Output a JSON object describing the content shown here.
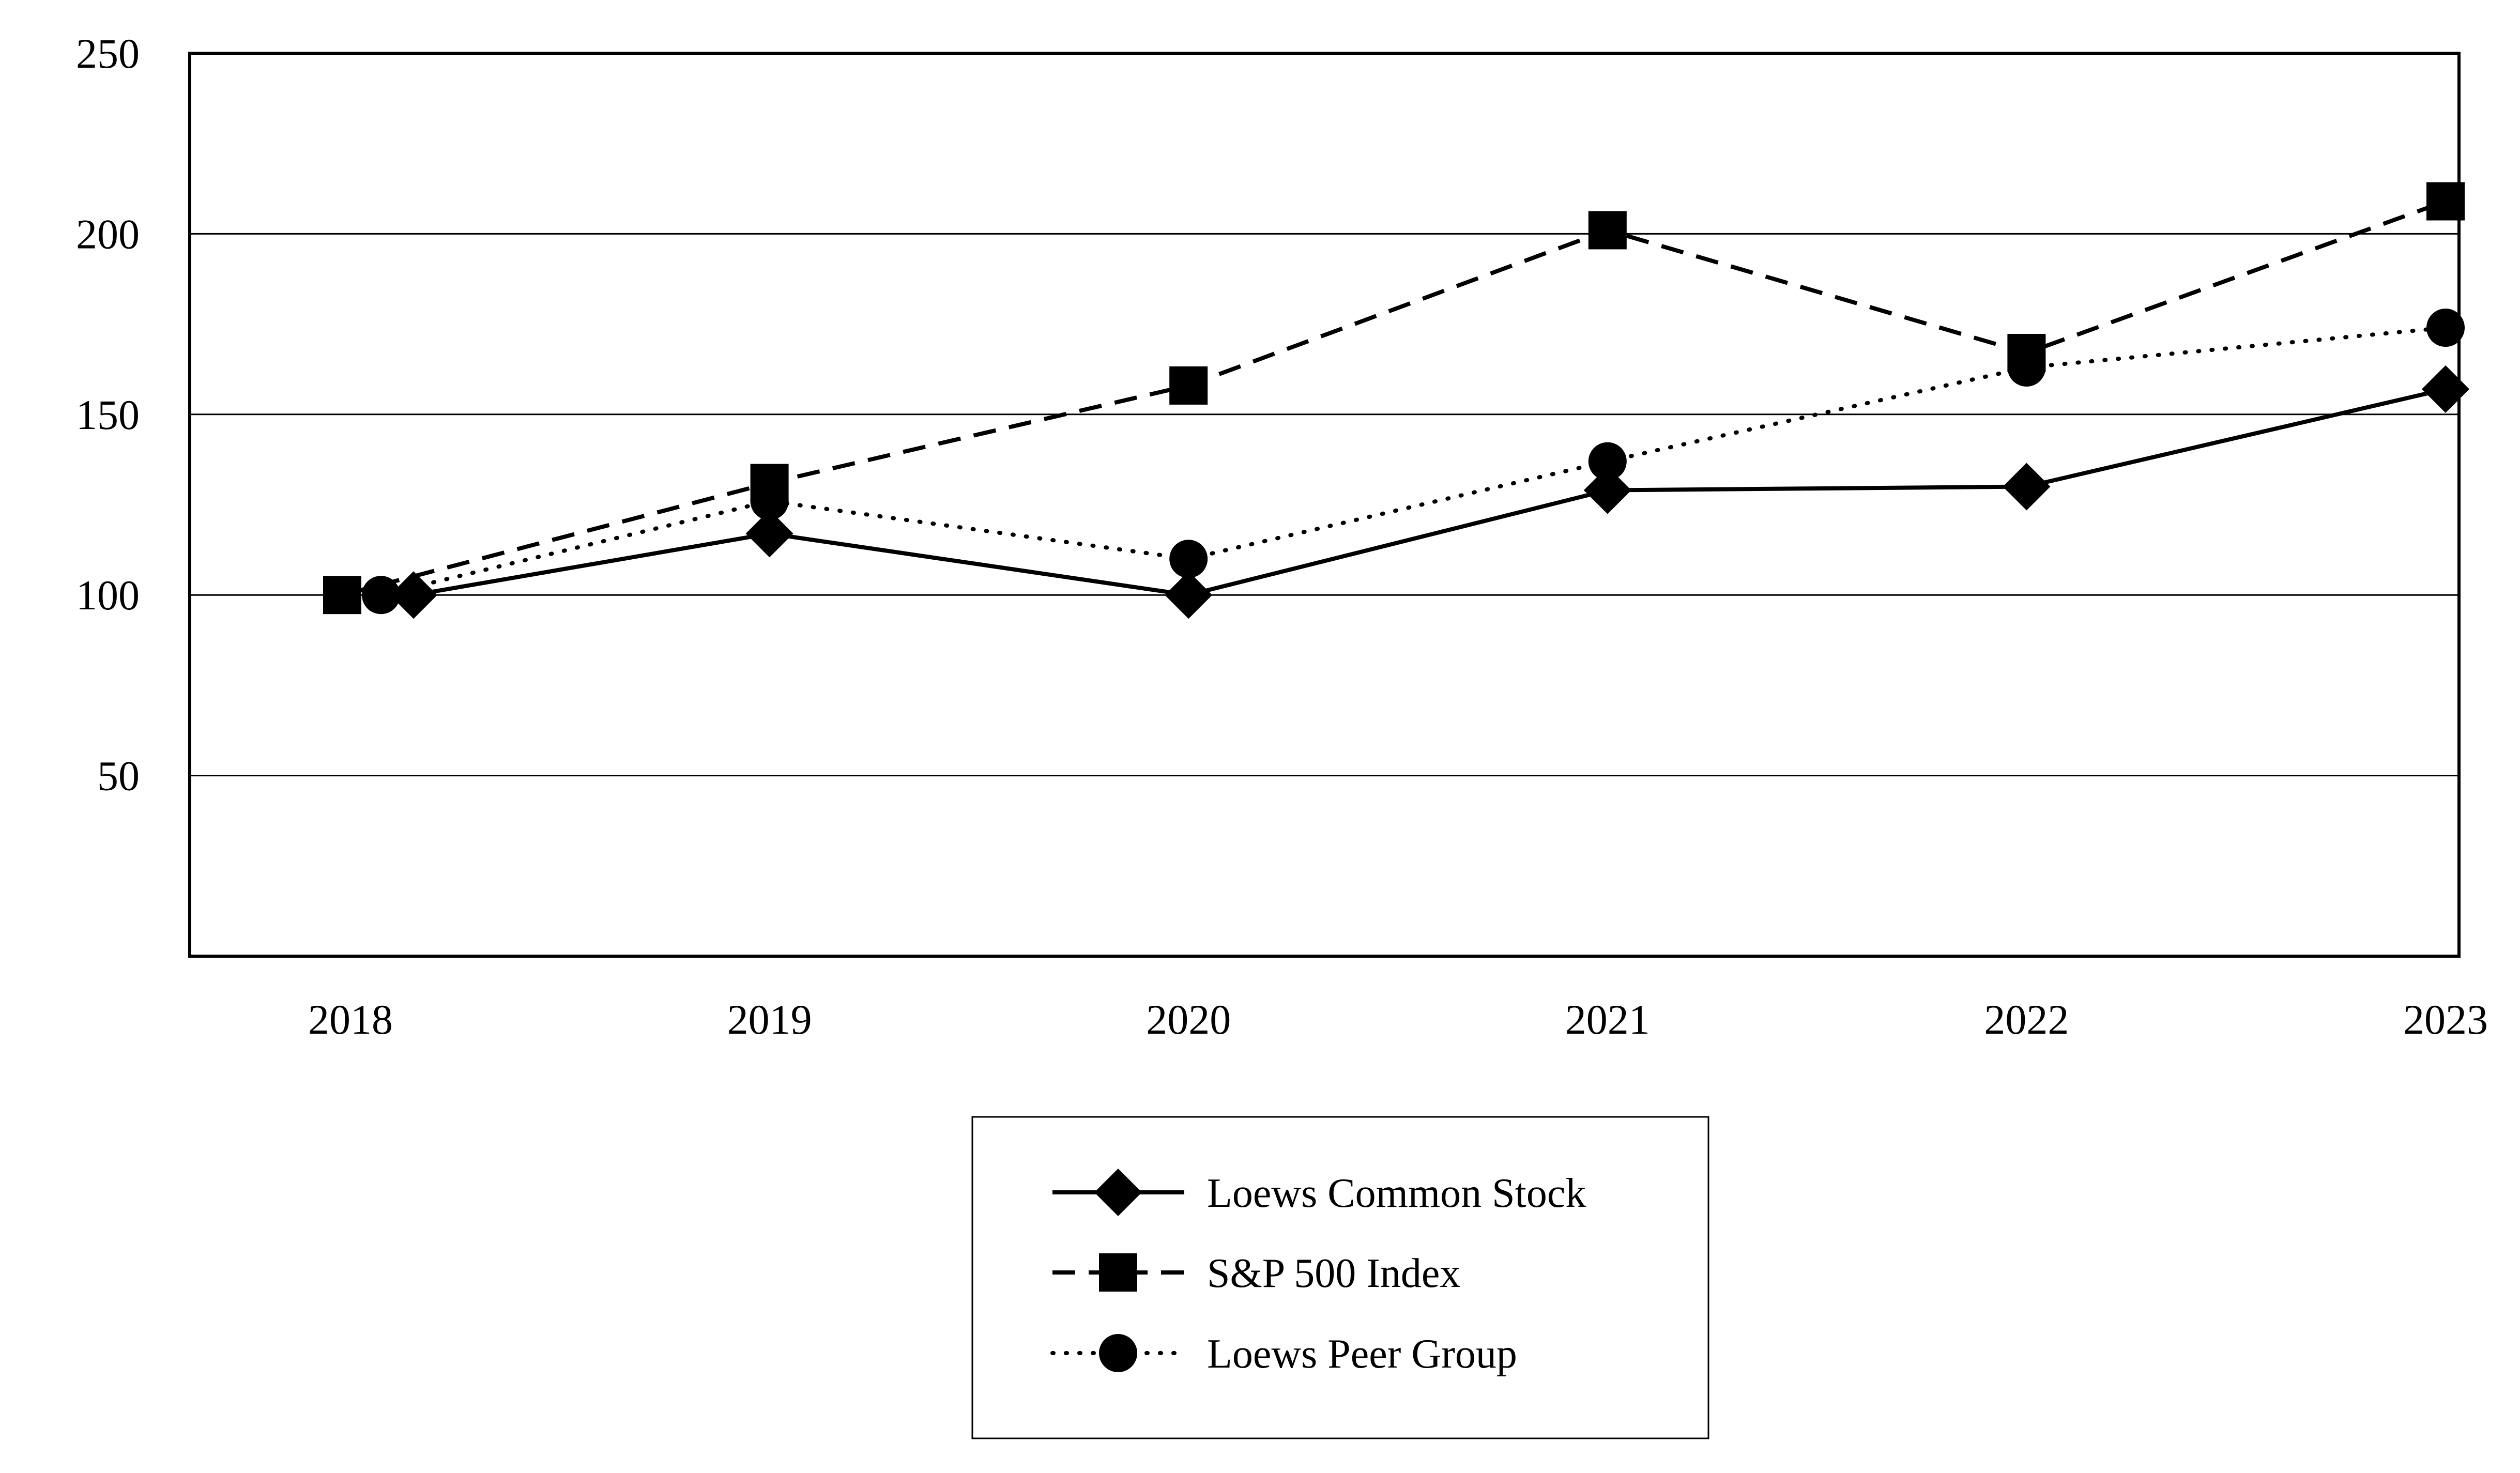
{
  "page": {
    "background_color": "#ffffff",
    "foreground_color": "#000000"
  },
  "chart_data": {
    "type": "line",
    "title": "",
    "categories": [
      "2018",
      "2019",
      "2020",
      "2021",
      "2022",
      "2023"
    ],
    "ylim": [
      0,
      250
    ],
    "y_ticks": [
      50,
      100,
      150,
      200,
      250
    ],
    "grid": "horizontal",
    "legend_position": "bottom-center",
    "color": "#000000",
    "series": [
      {
        "name": "Loews Common Stock",
        "marker": "diamond",
        "line_style": "solid",
        "values": [
          100,
          117,
          100,
          129,
          130,
          157
        ],
        "first_point_offset": 122
      },
      {
        "name": "S&P 500 Index",
        "marker": "square",
        "line_style": "dashed",
        "values": [
          100,
          131,
          158,
          201,
          167,
          209
        ],
        "first_point_offset": -16
      },
      {
        "name": "Loews Peer Group",
        "marker": "circle",
        "line_style": "dotted",
        "values": [
          100,
          126,
          110,
          137,
          163,
          174
        ],
        "first_point_offset": 59
      }
    ]
  }
}
